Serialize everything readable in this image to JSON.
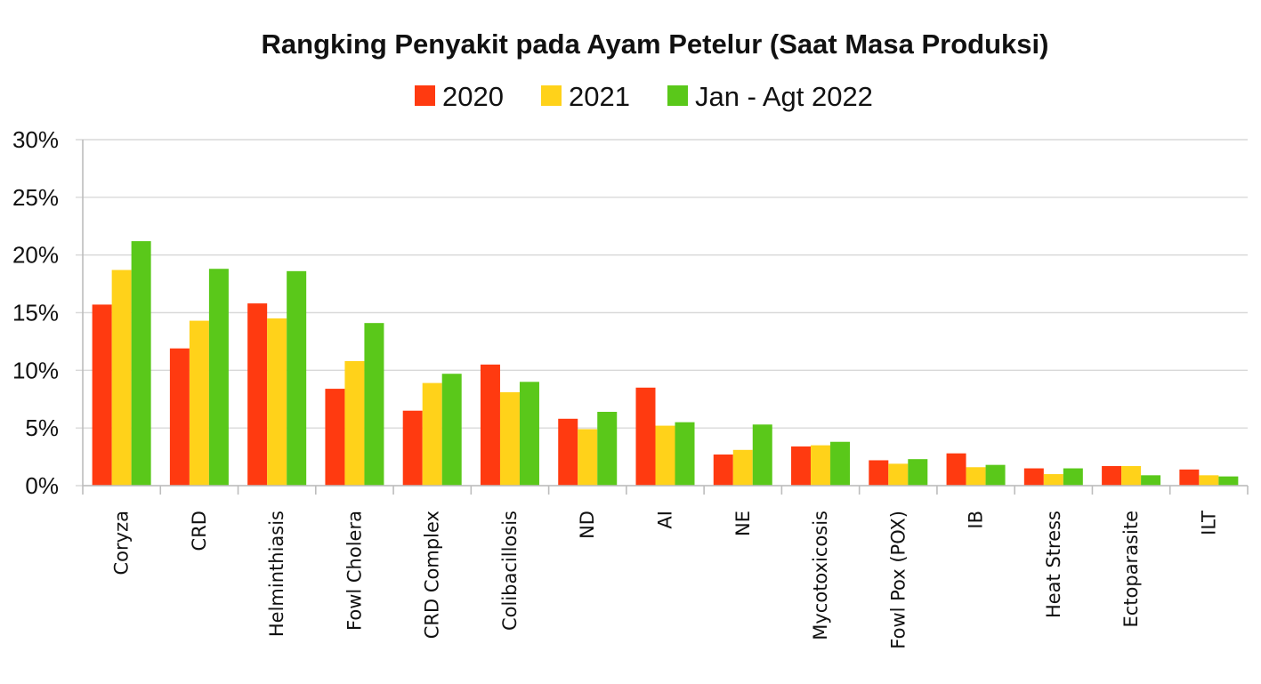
{
  "chart_data": {
    "type": "bar",
    "title": "Rangking Penyakit pada Ayam Petelur (Saat Masa Produksi)",
    "xlabel": "",
    "ylabel": "",
    "ylim": [
      0,
      30
    ],
    "y_ticks": [
      "0%",
      "5%",
      "10%",
      "15%",
      "20%",
      "25%",
      "30%"
    ],
    "grid": true,
    "legend_position": "top",
    "categories": [
      "Coryza",
      "CRD",
      "Helminthiasis",
      "Fowl Cholera",
      "CRD Complex",
      "Colibacillosis",
      "ND",
      "AI",
      "NE",
      "Mycotoxicosis",
      "Fowl Pox (POX)",
      "IB",
      "Heat Stress",
      "Ectoparasite",
      "ILT"
    ],
    "series": [
      {
        "name": "2020",
        "color": "#ff3a10",
        "values": [
          15.7,
          11.9,
          15.8,
          8.4,
          6.5,
          10.5,
          5.8,
          8.5,
          2.7,
          3.4,
          2.2,
          2.8,
          1.5,
          1.7,
          1.4
        ]
      },
      {
        "name": "2021",
        "color": "#ffd21a",
        "values": [
          18.7,
          14.3,
          14.5,
          10.8,
          8.9,
          8.1,
          4.9,
          5.2,
          3.1,
          3.5,
          1.9,
          1.6,
          1.0,
          1.7,
          0.9
        ]
      },
      {
        "name": "Jan - Agt 2022",
        "color": "#5ac81a",
        "values": [
          21.2,
          18.8,
          18.6,
          14.1,
          9.7,
          9.0,
          6.4,
          5.5,
          5.3,
          3.8,
          2.3,
          1.8,
          1.5,
          0.9,
          0.8
        ]
      }
    ]
  }
}
